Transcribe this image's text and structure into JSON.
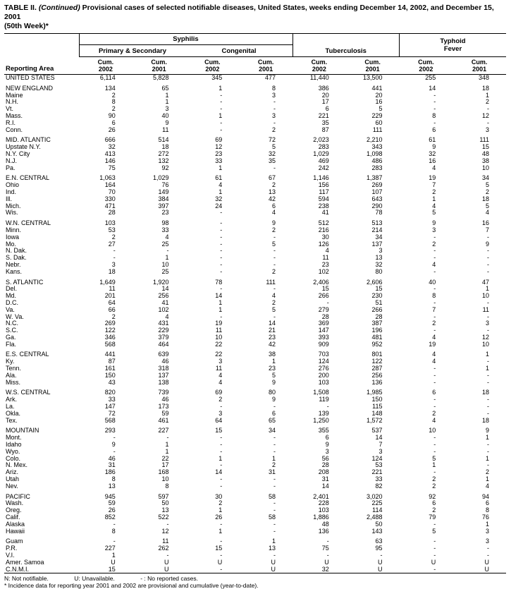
{
  "title": {
    "prefix": "TABLE II.",
    "continued": "(Continued)",
    "rest": "Provisional cases of selected notifiable diseases, United States, weeks ending December 14, 2002, and December 15, 2001",
    "week": "(50th Week)*"
  },
  "header": {
    "reporting_area": "Reporting Area",
    "groups": {
      "syphilis": "Syphilis",
      "tuberculosis": "Tuberculosis",
      "typhoid_fever": "Typhoid Fever"
    },
    "subgroups": {
      "primary_secondary": "Primary & Secondary",
      "congenital": "Congenital"
    },
    "cum_label": "Cum.",
    "year_pairs": [
      "2002",
      "2001",
      "2002",
      "2001",
      "2002",
      "2001",
      "2002",
      "2001"
    ]
  },
  "sections": [
    {
      "name": "united-states",
      "rows": [
        {
          "area": "UNITED STATES",
          "values": [
            "6,114",
            "5,828",
            "345",
            "477",
            "11,440",
            "13,500",
            "255",
            "348"
          ]
        }
      ]
    },
    {
      "name": "new-england",
      "rows": [
        {
          "area": "NEW ENGLAND",
          "values": [
            "134",
            "65",
            "1",
            "8",
            "386",
            "441",
            "14",
            "18"
          ]
        },
        {
          "area": "Maine",
          "values": [
            "2",
            "1",
            "-",
            "3",
            "20",
            "20",
            "-",
            "1"
          ]
        },
        {
          "area": "N.H.",
          "values": [
            "8",
            "1",
            "-",
            "-",
            "17",
            "16",
            "-",
            "2"
          ]
        },
        {
          "area": "Vt.",
          "values": [
            "2",
            "3",
            "-",
            "-",
            "6",
            "5",
            "-",
            "-"
          ]
        },
        {
          "area": "Mass.",
          "values": [
            "90",
            "40",
            "1",
            "3",
            "221",
            "229",
            "8",
            "12"
          ]
        },
        {
          "area": "R.I.",
          "values": [
            "6",
            "9",
            "-",
            "-",
            "35",
            "60",
            "-",
            "-"
          ]
        },
        {
          "area": "Conn.",
          "values": [
            "26",
            "11",
            "-",
            "2",
            "87",
            "111",
            "6",
            "3"
          ]
        }
      ]
    },
    {
      "name": "mid-atlantic",
      "rows": [
        {
          "area": "MID. ATLANTIC",
          "values": [
            "666",
            "514",
            "69",
            "72",
            "2,023",
            "2,210",
            "61",
            "111"
          ]
        },
        {
          "area": "Upstate N.Y.",
          "values": [
            "32",
            "18",
            "12",
            "5",
            "283",
            "343",
            "9",
            "15"
          ]
        },
        {
          "area": "N.Y. City",
          "values": [
            "413",
            "272",
            "23",
            "32",
            "1,029",
            "1,098",
            "32",
            "48"
          ]
        },
        {
          "area": "N.J.",
          "values": [
            "146",
            "132",
            "33",
            "35",
            "469",
            "486",
            "16",
            "38"
          ]
        },
        {
          "area": "Pa.",
          "values": [
            "75",
            "92",
            "1",
            "-",
            "242",
            "283",
            "4",
            "10"
          ]
        }
      ]
    },
    {
      "name": "e-n-central",
      "rows": [
        {
          "area": "E.N. CENTRAL",
          "values": [
            "1,063",
            "1,029",
            "61",
            "67",
            "1,146",
            "1,387",
            "19",
            "34"
          ]
        },
        {
          "area": "Ohio",
          "values": [
            "164",
            "76",
            "4",
            "2",
            "156",
            "269",
            "7",
            "5"
          ]
        },
        {
          "area": "Ind.",
          "values": [
            "70",
            "149",
            "1",
            "13",
            "117",
            "107",
            "2",
            "2"
          ]
        },
        {
          "area": "Ill.",
          "values": [
            "330",
            "384",
            "32",
            "42",
            "594",
            "643",
            "1",
            "18"
          ]
        },
        {
          "area": "Mich.",
          "values": [
            "471",
            "397",
            "24",
            "6",
            "238",
            "290",
            "4",
            "5"
          ]
        },
        {
          "area": "Wis.",
          "values": [
            "28",
            "23",
            "-",
            "4",
            "41",
            "78",
            "5",
            "4"
          ]
        }
      ]
    },
    {
      "name": "w-n-central",
      "rows": [
        {
          "area": "W.N. CENTRAL",
          "values": [
            "103",
            "98",
            "-",
            "9",
            "512",
            "513",
            "9",
            "16"
          ]
        },
        {
          "area": "Minn.",
          "values": [
            "53",
            "33",
            "-",
            "2",
            "216",
            "214",
            "3",
            "7"
          ]
        },
        {
          "area": "Iowa",
          "values": [
            "2",
            "4",
            "-",
            "-",
            "30",
            "34",
            "-",
            "-"
          ]
        },
        {
          "area": "Mo.",
          "values": [
            "27",
            "25",
            "-",
            "5",
            "126",
            "137",
            "2",
            "9"
          ]
        },
        {
          "area": "N. Dak.",
          "values": [
            "-",
            "-",
            "-",
            "-",
            "4",
            "3",
            "-",
            "-"
          ]
        },
        {
          "area": "S. Dak.",
          "values": [
            "-",
            "1",
            "-",
            "-",
            "11",
            "13",
            "-",
            "-"
          ]
        },
        {
          "area": "Nebr.",
          "values": [
            "3",
            "10",
            "-",
            "-",
            "23",
            "32",
            "4",
            "-"
          ]
        },
        {
          "area": "Kans.",
          "values": [
            "18",
            "25",
            "-",
            "2",
            "102",
            "80",
            "-",
            "-"
          ]
        }
      ]
    },
    {
      "name": "s-atlantic",
      "rows": [
        {
          "area": "S. ATLANTIC",
          "values": [
            "1,649",
            "1,920",
            "78",
            "111",
            "2,406",
            "2,606",
            "40",
            "47"
          ]
        },
        {
          "area": "Del.",
          "values": [
            "11",
            "14",
            "-",
            "-",
            "15",
            "15",
            "-",
            "1"
          ]
        },
        {
          "area": "Md.",
          "values": [
            "201",
            "256",
            "14",
            "4",
            "266",
            "230",
            "8",
            "10"
          ]
        },
        {
          "area": "D.C.",
          "values": [
            "64",
            "41",
            "1",
            "2",
            "-",
            "51",
            "-",
            "-"
          ]
        },
        {
          "area": "Va.",
          "values": [
            "66",
            "102",
            "1",
            "5",
            "279",
            "266",
            "7",
            "11"
          ]
        },
        {
          "area": "W. Va.",
          "values": [
            "2",
            "4",
            "-",
            "-",
            "28",
            "28",
            "-",
            "-"
          ]
        },
        {
          "area": "N.C.",
          "values": [
            "269",
            "431",
            "19",
            "14",
            "369",
            "387",
            "2",
            "3"
          ]
        },
        {
          "area": "S.C.",
          "values": [
            "122",
            "229",
            "11",
            "21",
            "147",
            "196",
            "-",
            "-"
          ]
        },
        {
          "area": "Ga.",
          "values": [
            "346",
            "379",
            "10",
            "23",
            "393",
            "481",
            "4",
            "12"
          ]
        },
        {
          "area": "Fla.",
          "values": [
            "568",
            "464",
            "22",
            "42",
            "909",
            "952",
            "19",
            "10"
          ]
        }
      ]
    },
    {
      "name": "e-s-central",
      "rows": [
        {
          "area": "E.S. CENTRAL",
          "values": [
            "441",
            "639",
            "22",
            "38",
            "703",
            "801",
            "4",
            "1"
          ]
        },
        {
          "area": "Ky.",
          "values": [
            "87",
            "46",
            "3",
            "1",
            "124",
            "122",
            "4",
            "-"
          ]
        },
        {
          "area": "Tenn.",
          "values": [
            "161",
            "318",
            "11",
            "23",
            "276",
            "287",
            "-",
            "1"
          ]
        },
        {
          "area": "Ala.",
          "values": [
            "150",
            "137",
            "4",
            "5",
            "200",
            "256",
            "-",
            "-"
          ]
        },
        {
          "area": "Miss.",
          "values": [
            "43",
            "138",
            "4",
            "9",
            "103",
            "136",
            "-",
            "-"
          ]
        }
      ]
    },
    {
      "name": "w-s-central",
      "rows": [
        {
          "area": "W.S. CENTRAL",
          "values": [
            "820",
            "739",
            "69",
            "80",
            "1,508",
            "1,985",
            "6",
            "18"
          ]
        },
        {
          "area": "Ark.",
          "values": [
            "33",
            "46",
            "2",
            "9",
            "119",
            "150",
            "-",
            "-"
          ]
        },
        {
          "area": "La.",
          "values": [
            "147",
            "173",
            "-",
            "-",
            "-",
            "115",
            "-",
            "-"
          ]
        },
        {
          "area": "Okla.",
          "values": [
            "72",
            "59",
            "3",
            "6",
            "139",
            "148",
            "2",
            "-"
          ]
        },
        {
          "area": "Tex.",
          "values": [
            "568",
            "461",
            "64",
            "65",
            "1,250",
            "1,572",
            "4",
            "18"
          ]
        }
      ]
    },
    {
      "name": "mountain",
      "rows": [
        {
          "area": "MOUNTAIN",
          "values": [
            "293",
            "227",
            "15",
            "34",
            "355",
            "537",
            "10",
            "9"
          ]
        },
        {
          "area": "Mont.",
          "values": [
            "-",
            "-",
            "-",
            "-",
            "6",
            "14",
            "-",
            "1"
          ]
        },
        {
          "area": "Idaho",
          "values": [
            "9",
            "1",
            "-",
            "-",
            "9",
            "7",
            "-",
            "-"
          ]
        },
        {
          "area": "Wyo.",
          "values": [
            "-",
            "1",
            "-",
            "-",
            "3",
            "3",
            "-",
            "-"
          ]
        },
        {
          "area": "Colo.",
          "values": [
            "46",
            "22",
            "1",
            "1",
            "56",
            "124",
            "5",
            "1"
          ]
        },
        {
          "area": "N. Mex.",
          "values": [
            "31",
            "17",
            "-",
            "2",
            "28",
            "53",
            "1",
            "-"
          ]
        },
        {
          "area": "Ariz.",
          "values": [
            "186",
            "168",
            "14",
            "31",
            "208",
            "221",
            "-",
            "2"
          ]
        },
        {
          "area": "Utah",
          "values": [
            "8",
            "10",
            "-",
            "-",
            "31",
            "33",
            "2",
            "1"
          ]
        },
        {
          "area": "Nev.",
          "values": [
            "13",
            "8",
            "-",
            "-",
            "14",
            "82",
            "2",
            "4"
          ]
        }
      ]
    },
    {
      "name": "pacific",
      "rows": [
        {
          "area": "PACIFIC",
          "values": [
            "945",
            "597",
            "30",
            "58",
            "2,401",
            "3,020",
            "92",
            "94"
          ]
        },
        {
          "area": "Wash.",
          "values": [
            "59",
            "50",
            "2",
            "-",
            "228",
            "225",
            "6",
            "6"
          ]
        },
        {
          "area": "Oreg.",
          "values": [
            "26",
            "13",
            "1",
            "-",
            "103",
            "114",
            "2",
            "8"
          ]
        },
        {
          "area": "Calif.",
          "values": [
            "852",
            "522",
            "26",
            "58",
            "1,886",
            "2,488",
            "79",
            "76"
          ]
        },
        {
          "area": "Alaska",
          "values": [
            "-",
            "-",
            "-",
            "-",
            "48",
            "50",
            "-",
            "1"
          ]
        },
        {
          "area": "Hawaii",
          "values": [
            "8",
            "12",
            "1",
            "-",
            "136",
            "143",
            "5",
            "3"
          ]
        }
      ]
    },
    {
      "name": "territories",
      "rows": [
        {
          "area": "Guam",
          "values": [
            "-",
            "11",
            "-",
            "1",
            "-",
            "63",
            "-",
            "3"
          ]
        },
        {
          "area": "P.R.",
          "values": [
            "227",
            "262",
            "15",
            "13",
            "75",
            "95",
            "-",
            "-"
          ]
        },
        {
          "area": "V.I.",
          "values": [
            "1",
            "-",
            "-",
            "-",
            "-",
            "-",
            "-",
            "-"
          ]
        },
        {
          "area": "Amer. Samoa",
          "values": [
            "U",
            "U",
            "U",
            "U",
            "U",
            "U",
            "U",
            "U"
          ]
        },
        {
          "area": "C.N.M.I.",
          "values": [
            "15",
            "U",
            "-",
            "U",
            "32",
            "U",
            "-",
            "U"
          ]
        }
      ]
    }
  ],
  "footnotes": {
    "legend": [
      "N: Not notifiable.",
      "U: Unavailable.",
      "- : No reported cases."
    ],
    "incidence_note": "* Incidence data for reporting year 2001 and 2002 are provisional and cumulative (year-to-date)."
  }
}
